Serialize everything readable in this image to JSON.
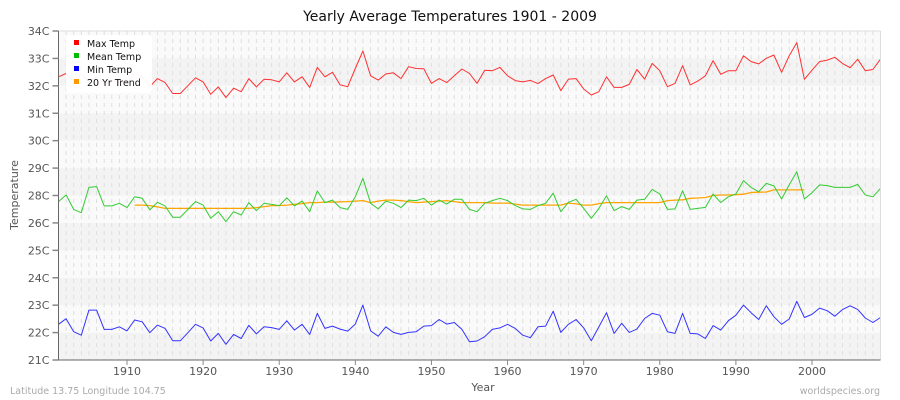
{
  "chart_data": {
    "type": "line",
    "title": "Yearly Average Temperatures 1901 - 2009",
    "xlabel": "Year",
    "ylabel": "Temperature",
    "ylim": [
      21,
      34
    ],
    "xlim": [
      1901,
      2009
    ],
    "yticks": [
      "34C",
      "33C",
      "32C",
      "31C",
      "30C",
      "29C",
      "28C",
      "26C",
      "25C",
      "24C",
      "23C",
      "22C",
      "21C"
    ],
    "xticks": [
      1910,
      1920,
      1930,
      1940,
      1950,
      1960,
      1970,
      1980,
      1990,
      2000
    ],
    "grid": true,
    "legend_position": "top-left",
    "x": [
      1901,
      1902,
      1903,
      1904,
      1905,
      1906,
      1907,
      1908,
      1909,
      1910,
      1911,
      1912,
      1913,
      1914,
      1915,
      1916,
      1917,
      1918,
      1919,
      1920,
      1921,
      1922,
      1923,
      1924,
      1925,
      1926,
      1927,
      1928,
      1929,
      1930,
      1931,
      1932,
      1933,
      1934,
      1935,
      1936,
      1937,
      1938,
      1939,
      1940,
      1941,
      1942,
      1943,
      1944,
      1945,
      1946,
      1947,
      1948,
      1949,
      1950,
      1951,
      1952,
      1953,
      1954,
      1955,
      1956,
      1957,
      1958,
      1959,
      1960,
      1961,
      1962,
      1963,
      1964,
      1965,
      1966,
      1967,
      1968,
      1969,
      1970,
      1971,
      1972,
      1973,
      1974,
      1975,
      1976,
      1977,
      1978,
      1979,
      1980,
      1981,
      1982,
      1983,
      1984,
      1985,
      1986,
      1987,
      1988,
      1989,
      1990,
      1991,
      1992,
      1993,
      1994,
      1995,
      1996,
      1997,
      1998,
      1999,
      2000,
      2001,
      2002,
      2003,
      2004,
      2005,
      2006,
      2007,
      2008,
      2009
    ],
    "series": [
      {
        "name": "Max Temp",
        "color": "#ff3030",
        "values": [
          32.19,
          32.32,
          32.0,
          32.3,
          32.0,
          32.2,
          31.9,
          32.0,
          32.1,
          31.9,
          32.3,
          32.2,
          31.8,
          32.12,
          31.96,
          31.53,
          31.53,
          31.84,
          32.15,
          31.99,
          31.5,
          31.79,
          31.37,
          31.74,
          31.6,
          32.12,
          31.79,
          32.09,
          32.07,
          31.99,
          32.35,
          31.99,
          32.19,
          31.77,
          32.56,
          32.19,
          32.37,
          31.87,
          31.8,
          32.52,
          33.21,
          32.23,
          32.06,
          32.3,
          32.35,
          32.12,
          32.59,
          32.52,
          32.51,
          31.93,
          32.12,
          31.96,
          32.23,
          32.5,
          32.32,
          31.93,
          32.45,
          32.43,
          32.56,
          32.23,
          32.04,
          31.99,
          32.05,
          31.92,
          32.12,
          32.26,
          31.64,
          32.1,
          32.12,
          31.71,
          31.47,
          31.6,
          32.19,
          31.77,
          31.77,
          31.89,
          32.48,
          32.1,
          32.72,
          32.43,
          31.8,
          31.93,
          32.63,
          31.87,
          32.02,
          32.23,
          32.83,
          32.29,
          32.43,
          32.43,
          33.02,
          32.79,
          32.7,
          32.92,
          33.05,
          32.37,
          33.02,
          33.54,
          32.09,
          32.45,
          32.79,
          32.85,
          32.96,
          32.72,
          32.55,
          32.88,
          32.43,
          32.48,
          32.89
        ]
      },
      {
        "name": "Mean Temp",
        "color": "#33cc33",
        "values": [
          27.26,
          27.52,
          26.95,
          26.82,
          27.82,
          27.85,
          27.09,
          27.09,
          27.19,
          27.02,
          27.45,
          27.39,
          26.93,
          27.23,
          27.09,
          26.64,
          26.64,
          26.95,
          27.26,
          27.12,
          26.6,
          26.86,
          26.47,
          26.86,
          26.73,
          27.22,
          26.9,
          27.19,
          27.15,
          27.1,
          27.41,
          27.09,
          27.28,
          26.86,
          27.68,
          27.22,
          27.32,
          27.02,
          26.95,
          27.45,
          28.18,
          27.19,
          26.97,
          27.28,
          27.19,
          27.02,
          27.32,
          27.3,
          27.39,
          27.12,
          27.32,
          27.16,
          27.35,
          27.35,
          26.95,
          26.86,
          27.19,
          27.3,
          27.39,
          27.3,
          27.1,
          26.97,
          26.95,
          27.1,
          27.19,
          27.59,
          26.86,
          27.23,
          27.35,
          26.99,
          26.6,
          26.99,
          27.49,
          26.9,
          27.06,
          26.95,
          27.32,
          27.35,
          27.74,
          27.56,
          26.95,
          26.97,
          27.69,
          26.95,
          26.99,
          27.03,
          27.56,
          27.22,
          27.45,
          27.56,
          28.09,
          27.82,
          27.65,
          27.98,
          27.88,
          27.36,
          27.92,
          28.44,
          27.36,
          27.61,
          27.92,
          27.89,
          27.82,
          27.82,
          27.82,
          27.94,
          27.52,
          27.45,
          27.78
        ]
      },
      {
        "name": "Min Temp",
        "color": "#3333ff",
        "values": [
          22.41,
          22.63,
          22.12,
          21.98,
          22.97,
          22.97,
          22.21,
          22.21,
          22.31,
          22.15,
          22.58,
          22.51,
          22.08,
          22.38,
          22.25,
          21.76,
          21.76,
          22.08,
          22.41,
          22.27,
          21.75,
          22.05,
          21.62,
          22.01,
          21.85,
          22.37,
          22.03,
          22.31,
          22.28,
          22.21,
          22.55,
          22.18,
          22.41,
          22.01,
          22.84,
          22.25,
          22.34,
          22.22,
          22.14,
          22.42,
          23.17,
          22.15,
          21.94,
          22.31,
          22.09,
          22.01,
          22.09,
          22.12,
          22.34,
          22.36,
          22.6,
          22.42,
          22.48,
          22.21,
          21.72,
          21.75,
          21.92,
          22.21,
          22.27,
          22.41,
          22.25,
          21.98,
          21.88,
          22.31,
          22.34,
          22.93,
          22.09,
          22.41,
          22.6,
          22.27,
          21.76,
          22.31,
          22.87,
          22.05,
          22.45,
          22.09,
          22.22,
          22.64,
          22.84,
          22.77,
          22.12,
          22.05,
          22.84,
          22.05,
          22.03,
          21.85,
          22.36,
          22.18,
          22.55,
          22.77,
          23.17,
          22.87,
          22.6,
          23.14,
          22.71,
          22.41,
          22.62,
          23.32,
          22.68,
          22.8,
          23.05,
          22.95,
          22.73,
          22.99,
          23.14,
          23.0,
          22.66,
          22.48,
          22.68
        ]
      },
      {
        "name": "20 Yr Trend",
        "color": "#ffa500",
        "values": [
          null,
          null,
          null,
          null,
          null,
          null,
          null,
          null,
          null,
          null,
          27.12,
          27.12,
          27.1,
          27.05,
          26.99,
          26.99,
          26.99,
          26.99,
          26.99,
          26.99,
          26.99,
          26.99,
          26.99,
          26.99,
          26.99,
          26.99,
          27.02,
          27.06,
          27.1,
          27.1,
          27.12,
          27.15,
          27.18,
          27.22,
          27.22,
          27.24,
          27.24,
          27.25,
          27.26,
          27.28,
          27.3,
          27.22,
          27.28,
          27.32,
          27.32,
          27.3,
          27.26,
          27.22,
          27.24,
          27.26,
          27.28,
          27.3,
          27.26,
          27.22,
          27.22,
          27.22,
          27.22,
          27.2,
          27.2,
          27.2,
          27.16,
          27.12,
          27.12,
          27.12,
          27.12,
          27.12,
          27.12,
          27.2,
          27.17,
          27.12,
          27.12,
          27.18,
          27.22,
          27.22,
          27.22,
          27.22,
          27.22,
          27.22,
          27.22,
          27.22,
          27.3,
          27.32,
          27.33,
          27.39,
          27.4,
          27.42,
          27.5,
          27.52,
          27.52,
          27.53,
          27.55,
          27.62,
          27.63,
          27.64,
          27.72,
          27.72,
          27.72,
          27.72,
          27.72,
          null,
          null,
          null,
          null,
          null,
          null,
          null,
          null,
          null,
          null
        ]
      }
    ]
  },
  "footer": {
    "location": "Latitude 13.75 Longitude 104.75",
    "source": "worldspecies.org"
  }
}
